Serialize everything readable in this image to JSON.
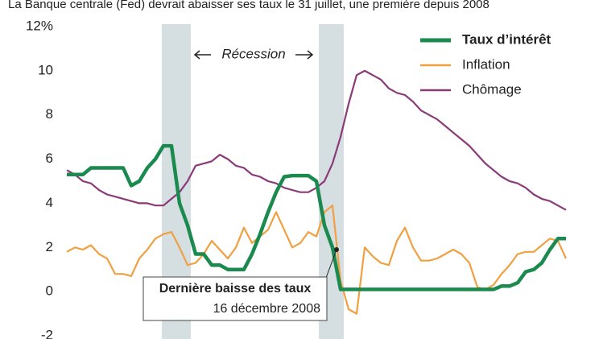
{
  "chart_data": {
    "type": "line",
    "title": "La Banque centrale (Fed) devrait abaisser ses taux le 31 juillet, une première depuis 2008",
    "recession_label": "Récession",
    "annotation": {
      "title": "Dernière baisse des taux",
      "date": "16 décembre 2008"
    },
    "ylim": [
      -2,
      12
    ],
    "yticks": [
      -2,
      0,
      2,
      4,
      6,
      8,
      10,
      {
        "value": 12,
        "label": "12%"
      }
    ],
    "grid": false,
    "series": [
      {
        "name": "Taux d’intérêt",
        "color": "#1a8a4f",
        "values": [
          5.3,
          5.3,
          5.3,
          5.6,
          5.6,
          5.6,
          5.6,
          5.6,
          4.8,
          5.0,
          5.6,
          6.0,
          6.6,
          6.6,
          4.0,
          3.0,
          1.7,
          1.7,
          1.2,
          1.2,
          1.0,
          1.0,
          1.0,
          1.7,
          2.6,
          3.6,
          4.5,
          5.2,
          5.25,
          5.25,
          5.25,
          5.0,
          3.0,
          2.0,
          0.1,
          0.1,
          0.1,
          0.1,
          0.1,
          0.1,
          0.1,
          0.1,
          0.1,
          0.1,
          0.1,
          0.1,
          0.1,
          0.1,
          0.1,
          0.1,
          0.1,
          0.1,
          0.1,
          0.1,
          0.25,
          0.25,
          0.4,
          0.9,
          1.0,
          1.3,
          1.9,
          2.4,
          2.4
        ]
      },
      {
        "name": "Inflation",
        "color": "#f0a040",
        "values": [
          1.8,
          2.0,
          1.9,
          2.1,
          1.7,
          1.5,
          0.8,
          0.8,
          0.7,
          1.5,
          1.9,
          2.4,
          2.6,
          2.7,
          2.0,
          1.2,
          1.3,
          1.7,
          2.3,
          1.9,
          1.5,
          2.0,
          2.9,
          2.2,
          2.5,
          2.8,
          3.6,
          2.8,
          2.0,
          2.2,
          2.7,
          2.5,
          3.6,
          3.9,
          0.5,
          -0.8,
          -1.0,
          2.0,
          1.6,
          1.3,
          1.2,
          2.3,
          2.9,
          2.0,
          1.4,
          1.4,
          1.5,
          1.7,
          1.9,
          1.7,
          1.3,
          0.2,
          0.1,
          0.3,
          0.8,
          1.2,
          1.7,
          1.8,
          1.8,
          2.1,
          2.4,
          2.3,
          1.5
        ]
      },
      {
        "name": "Chômage",
        "color": "#8b3a78",
        "values": [
          5.5,
          5.3,
          5.0,
          4.9,
          4.6,
          4.4,
          4.3,
          4.2,
          4.1,
          4.0,
          4.0,
          3.9,
          3.9,
          4.2,
          4.5,
          5.0,
          5.7,
          5.8,
          5.9,
          6.2,
          6.0,
          5.7,
          5.6,
          5.3,
          5.2,
          5.0,
          4.9,
          4.7,
          4.6,
          4.5,
          4.5,
          4.7,
          5.0,
          5.8,
          7.0,
          8.5,
          9.8,
          10.0,
          9.8,
          9.6,
          9.2,
          9.0,
          8.9,
          8.6,
          8.2,
          8.0,
          7.8,
          7.5,
          7.2,
          6.9,
          6.6,
          6.2,
          5.8,
          5.5,
          5.2,
          5.0,
          4.9,
          4.7,
          4.4,
          4.2,
          4.1,
          3.9,
          3.7
        ]
      }
    ]
  }
}
